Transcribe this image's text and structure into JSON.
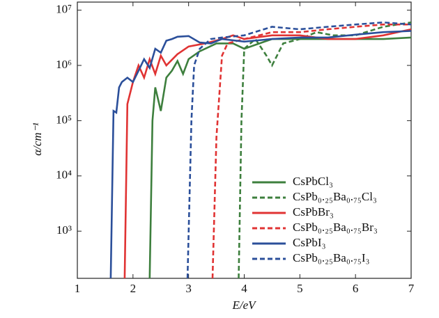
{
  "chart_data": {
    "type": "line",
    "xlabel": "E/eV",
    "ylabel": "α/cm⁻¹",
    "xlim": [
      1,
      7
    ],
    "xticks": [
      1,
      2,
      3,
      4,
      5,
      6,
      7
    ],
    "ylim": [
      140,
      14000000
    ],
    "log_y": true,
    "yticks": [
      {
        "value": 1000,
        "label": "10³"
      },
      {
        "value": 10000,
        "label": "10⁴"
      },
      {
        "value": 100000,
        "label": "10⁵"
      },
      {
        "value": 1000000,
        "label": "10⁶"
      },
      {
        "value": 10000000,
        "label": "10⁷"
      }
    ],
    "legend": "lower right",
    "series": [
      {
        "name": "CsPbCl₃",
        "color": "#3d7f3d",
        "dashed": false,
        "x": [
          2.3,
          2.35,
          2.4,
          2.5,
          2.6,
          2.7,
          2.8,
          2.9,
          3.0,
          3.2,
          3.5,
          3.8,
          4.0,
          4.5,
          5.0,
          5.5,
          6.0,
          6.5,
          7.0
        ],
        "values": [
          140,
          100000,
          400000,
          150000,
          600000,
          800000,
          1200000,
          700000,
          1300000,
          1800000,
          2500000,
          2500000,
          2000000,
          3000000,
          3000000,
          3000000,
          3000000,
          3000000,
          3200000
        ]
      },
      {
        "name": "CsPb₀.₂₅Ba₀.₇₅Cl₃",
        "color": "#3d7f3d",
        "dashed": true,
        "x": [
          3.9,
          3.95,
          4.0,
          4.2,
          4.4,
          4.5,
          4.7,
          5.0,
          5.3,
          5.6,
          6.0,
          6.5,
          7.0
        ],
        "values": [
          140,
          100000,
          2000000,
          3000000,
          1500000,
          1000000,
          2500000,
          3000000,
          4000000,
          3500000,
          3500000,
          5000000,
          6000000
        ]
      },
      {
        "name": "CsPbBr₃",
        "color": "#e03333",
        "dashed": false,
        "x": [
          1.85,
          1.9,
          2.0,
          2.1,
          2.2,
          2.3,
          2.4,
          2.5,
          2.6,
          2.8,
          3.0,
          3.3,
          3.6,
          3.8,
          4.0,
          4.5,
          5.0,
          5.5,
          6.0,
          6.5,
          7.0
        ],
        "values": [
          140,
          200000,
          500000,
          1000000,
          600000,
          1300000,
          700000,
          1500000,
          1000000,
          1600000,
          2200000,
          2500000,
          3000000,
          3500000,
          3000000,
          3500000,
          3500000,
          3000000,
          3000000,
          3500000,
          4500000
        ]
      },
      {
        "name": "CsPb₀.₂₅Ba₀.₇₅Br₃",
        "color": "#e03333",
        "dashed": true,
        "x": [
          3.43,
          3.5,
          3.6,
          3.7,
          4.0,
          4.5,
          5.0,
          5.5,
          6.0,
          6.5,
          7.0
        ],
        "values": [
          140,
          50000,
          1500000,
          2500000,
          3000000,
          4000000,
          4000000,
          4500000,
          5000000,
          5500000,
          5500000
        ]
      },
      {
        "name": "CsPbI₃",
        "color": "#2b4f9a",
        "dashed": false,
        "x": [
          1.6,
          1.65,
          1.7,
          1.75,
          1.8,
          1.9,
          2.0,
          2.1,
          2.2,
          2.3,
          2.4,
          2.5,
          2.6,
          2.7,
          2.8,
          3.0,
          3.2,
          3.4,
          3.6,
          4.0,
          4.5,
          5.0,
          5.5,
          6.0,
          6.5,
          7.0
        ],
        "values": [
          140,
          150000,
          140000,
          400000,
          500000,
          600000,
          500000,
          800000,
          1300000,
          900000,
          2000000,
          1700000,
          2800000,
          3000000,
          3300000,
          3400000,
          2600000,
          2500000,
          3000000,
          2700000,
          3000000,
          3200000,
          3200000,
          3600000,
          4000000,
          4200000
        ]
      },
      {
        "name": "CsPb₀.₂₅Ba₀.₇₅I₃",
        "color": "#2b4f9a",
        "dashed": true,
        "x": [
          2.98,
          3.05,
          3.1,
          3.2,
          3.4,
          3.6,
          4.0,
          4.5,
          5.0,
          5.5,
          6.0,
          6.5,
          7.0
        ],
        "values": [
          140,
          100000,
          1000000,
          2000000,
          3000000,
          3200000,
          3500000,
          5000000,
          4500000,
          5000000,
          5500000,
          6000000,
          5500000
        ]
      }
    ]
  }
}
